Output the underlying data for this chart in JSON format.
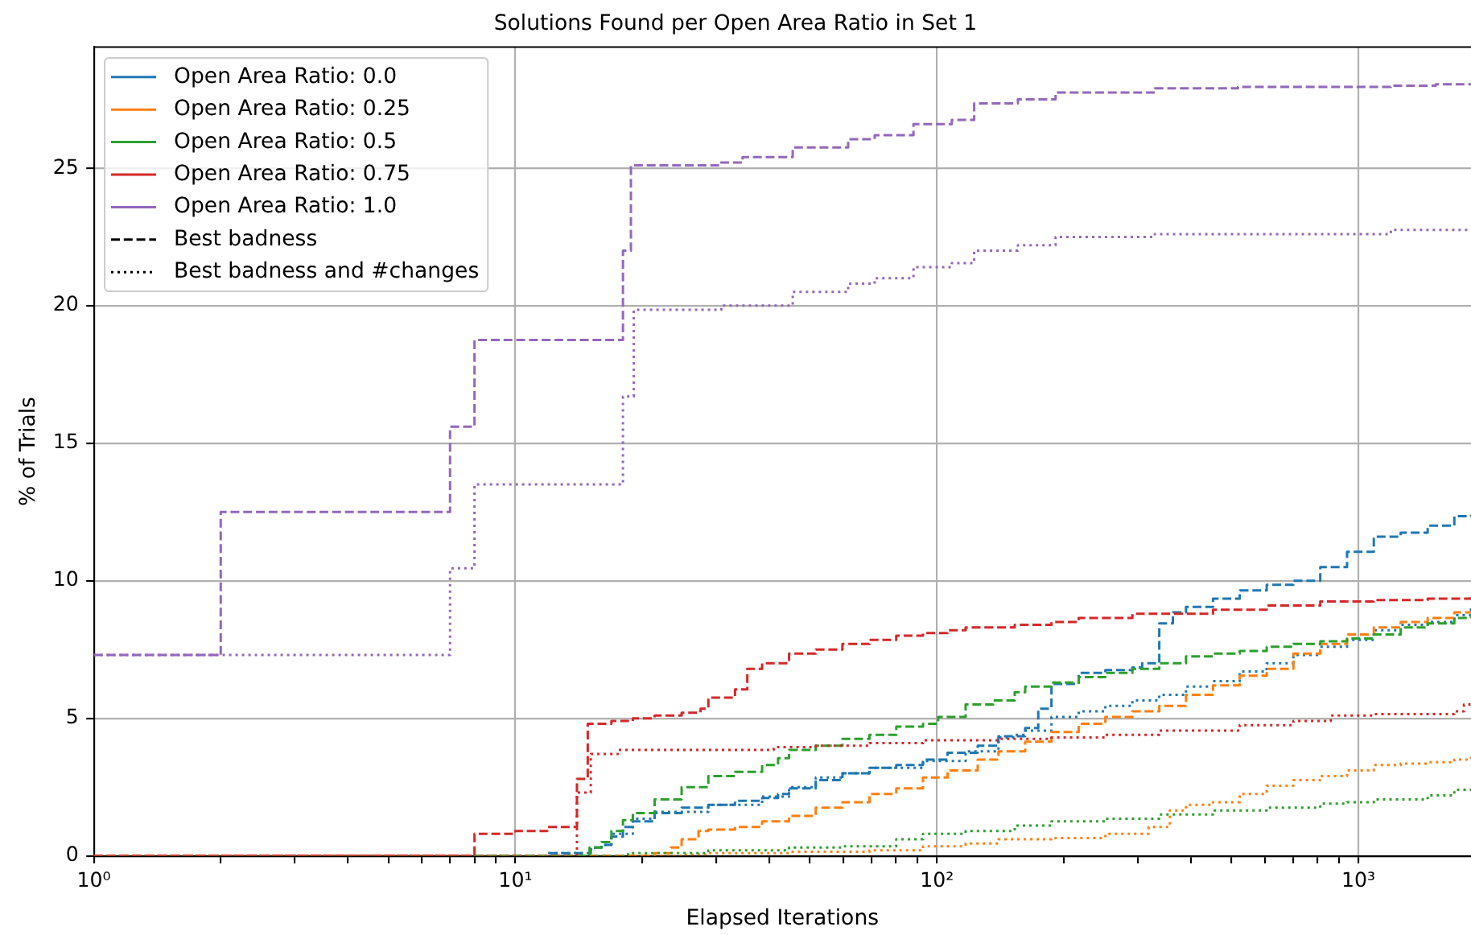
{
  "chart_data": {
    "type": "step",
    "title": "Solutions Found per Open Area Ratio in Set 1",
    "xlabel": "Elapsed Iterations",
    "ylabel": "% of Trials",
    "log": "x",
    "grid": true,
    "legend": "top left",
    "xlim": [
      1,
      1850
    ],
    "xticks": [
      {
        "value": 1,
        "label": "10⁰"
      },
      {
        "value": 2,
        "label": null
      },
      {
        "value": 3,
        "label": null
      },
      {
        "value": 4,
        "label": null
      },
      {
        "value": 5,
        "label": null
      },
      {
        "value": 6,
        "label": null
      },
      {
        "value": 7,
        "label": null
      },
      {
        "value": 8,
        "label": null
      },
      {
        "value": 9,
        "label": null
      },
      {
        "value": 10,
        "label": "10¹"
      },
      {
        "value": 20,
        "label": null
      },
      {
        "value": 30,
        "label": null
      },
      {
        "value": 40,
        "label": null
      },
      {
        "value": 50,
        "label": null
      },
      {
        "value": 60,
        "label": null
      },
      {
        "value": 70,
        "label": null
      },
      {
        "value": 80,
        "label": null
      },
      {
        "value": 90,
        "label": null
      },
      {
        "value": 100,
        "label": "10²"
      },
      {
        "value": 200,
        "label": null
      },
      {
        "value": 300,
        "label": null
      },
      {
        "value": 400,
        "label": null
      },
      {
        "value": 500,
        "label": null
      },
      {
        "value": 600,
        "label": null
      },
      {
        "value": 700,
        "label": null
      },
      {
        "value": 800,
        "label": null
      },
      {
        "value": 900,
        "label": null
      },
      {
        "value": 1000,
        "label": "10³"
      }
    ],
    "ylim": [
      0,
      29.4
    ],
    "yticks": [
      0,
      5,
      10,
      15,
      20,
      25
    ],
    "series": [
      {
        "name": "Open Area Ratio: 0.0",
        "color": "#1f77b4",
        "line_style": "solid"
      },
      {
        "name": "Open Area Ratio: 0.25",
        "color": "#ff7f0e",
        "line_style": "solid"
      },
      {
        "name": "Open Area Ratio: 0.5",
        "color": "#2ca02c",
        "line_style": "solid"
      },
      {
        "name": "Open Area Ratio: 0.75",
        "color": "#d62728",
        "line_style": "solid"
      },
      {
        "name": "Open Area Ratio: 1.0",
        "color": "#9467bd",
        "line_style": "solid"
      },
      {
        "name": "Best badness",
        "color": "#000000",
        "line_style": "dashed"
      },
      {
        "name": "Best badness and #changes",
        "color": "#000000",
        "line_style": "dotted"
      },
      {
        "color": "#1f77b4",
        "line_style": "dashed",
        "x": [
          1,
          11.9,
          15.1,
          16,
          16.9,
          18,
          19,
          21.4,
          24.8,
          28.7,
          33.2,
          38.5,
          42,
          44.6,
          51.6,
          59.7,
          69.2,
          80.1,
          92.7,
          106,
          125,
          140,
          162,
          174,
          187,
          217,
          251,
          291,
          307,
          337,
          363,
          390,
          452,
          523,
          606,
          701,
          812,
          940,
          1088,
          1260,
          1460,
          1689,
          1850
        ],
        "values": [
          0,
          0.1,
          0.3,
          0.4,
          0.7,
          1.05,
          1.25,
          1.55,
          1.75,
          1.85,
          2.0,
          2.1,
          2.25,
          2.45,
          2.75,
          3.0,
          3.2,
          3.3,
          3.5,
          3.75,
          4.0,
          4.35,
          4.65,
          5.35,
          6.25,
          6.65,
          6.75,
          6.85,
          7.0,
          8.45,
          8.85,
          9.05,
          9.35,
          9.65,
          9.85,
          10.0,
          10.5,
          11.05,
          11.6,
          11.75,
          12.0,
          12.35,
          12.4
        ]
      },
      {
        "color": "#1f77b4",
        "line_style": "dotted",
        "x": [
          1,
          11.9,
          15.1,
          16,
          16.9,
          19,
          21.4,
          28.7,
          38.5,
          44.6,
          51.6,
          59.7,
          69.2,
          92.7,
          117,
          140,
          153,
          162,
          187,
          217,
          251,
          291,
          337,
          390,
          452,
          523,
          606,
          701,
          812,
          940,
          1088,
          1260,
          1460,
          1689,
          1850
        ],
        "values": [
          0,
          0.1,
          0.3,
          0.4,
          0.8,
          1.35,
          1.6,
          1.85,
          2.15,
          2.5,
          2.85,
          3.0,
          3.2,
          3.45,
          3.8,
          4.3,
          4.4,
          4.55,
          5.05,
          5.25,
          5.45,
          5.65,
          5.85,
          6.15,
          6.35,
          6.7,
          7.0,
          7.3,
          7.6,
          7.85,
          8.2,
          8.4,
          8.5,
          8.75,
          9.1
        ]
      },
      {
        "color": "#ff7f0e",
        "line_style": "dashed",
        "x": [
          1,
          21.4,
          23.4,
          24.8,
          27.2,
          28.7,
          33.2,
          38.5,
          44.6,
          51.6,
          59.7,
          69.2,
          80.1,
          92.7,
          106,
          125,
          140,
          162,
          187,
          217,
          251,
          291,
          337,
          390,
          452,
          523,
          606,
          701,
          812,
          940,
          1088,
          1260,
          1460,
          1689,
          1850
        ],
        "values": [
          0,
          0.1,
          0.3,
          0.6,
          0.9,
          0.95,
          1.05,
          1.25,
          1.45,
          1.75,
          1.95,
          2.25,
          2.45,
          2.85,
          3.1,
          3.5,
          3.8,
          4.15,
          4.5,
          4.8,
          5.05,
          5.25,
          5.45,
          5.85,
          6.2,
          6.55,
          6.8,
          7.35,
          7.7,
          8.05,
          8.3,
          8.5,
          8.65,
          8.85,
          8.9
        ]
      },
      {
        "color": "#ff7f0e",
        "line_style": "dotted",
        "x": [
          1,
          25,
          28.7,
          44.6,
          69.2,
          92.7,
          117,
          140,
          187,
          251,
          318,
          357,
          390,
          452,
          523,
          606,
          701,
          812,
          940,
          1088,
          1260,
          1460,
          1689,
          1850
        ],
        "values": [
          0,
          0.05,
          0.1,
          0.15,
          0.2,
          0.35,
          0.45,
          0.6,
          0.65,
          0.8,
          1.05,
          1.65,
          1.85,
          1.95,
          2.25,
          2.55,
          2.75,
          2.9,
          3.1,
          3.3,
          3.35,
          3.4,
          3.5,
          3.6
        ]
      },
      {
        "color": "#2ca02c",
        "line_style": "dashed",
        "x": [
          1,
          15,
          16,
          16.9,
          18,
          19,
          21.4,
          24.8,
          28.7,
          33.2,
          38.5,
          42,
          44.6,
          51.6,
          59.7,
          69.2,
          80.1,
          92.7,
          100.7,
          117,
          136,
          153,
          162,
          187,
          217,
          251,
          291,
          337,
          390,
          452,
          523,
          606,
          701,
          812,
          940,
          1088,
          1260,
          1460,
          1689,
          1850
        ],
        "values": [
          0,
          0.3,
          0.5,
          0.9,
          1.3,
          1.55,
          2.05,
          2.5,
          2.9,
          3.05,
          3.3,
          3.55,
          3.85,
          4.0,
          4.25,
          4.4,
          4.7,
          4.8,
          5.05,
          5.5,
          5.65,
          5.95,
          6.15,
          6.3,
          6.5,
          6.65,
          6.8,
          7.0,
          7.25,
          7.35,
          7.45,
          7.6,
          7.7,
          7.8,
          7.9,
          8.05,
          8.3,
          8.45,
          8.65,
          8.8
        ]
      },
      {
        "color": "#2ca02c",
        "line_style": "dotted",
        "x": [
          1,
          18.5,
          28.7,
          44.6,
          59.7,
          80.1,
          92.7,
          117,
          153,
          187,
          251,
          337,
          452,
          606,
          812,
          940,
          1088,
          1460,
          1689,
          1850
        ],
        "values": [
          0,
          0.1,
          0.2,
          0.3,
          0.35,
          0.6,
          0.8,
          0.9,
          1.1,
          1.25,
          1.35,
          1.5,
          1.65,
          1.75,
          1.9,
          1.95,
          2.05,
          2.2,
          2.4,
          2.55
        ]
      },
      {
        "color": "#d62728",
        "line_style": "dashed",
        "x": [
          1,
          8,
          10,
          11.9,
          14,
          14.85,
          16.9,
          19,
          21.4,
          24.8,
          27.5,
          28.7,
          33.2,
          35.5,
          38.5,
          44.6,
          51.6,
          59.7,
          69.2,
          80.1,
          92.7,
          106,
          117,
          153,
          187,
          217,
          291,
          452,
          606,
          812,
          1088,
          1460,
          1850
        ],
        "values": [
          0,
          0.8,
          0.9,
          1.05,
          2.8,
          4.8,
          4.9,
          5.0,
          5.1,
          5.2,
          5.35,
          5.75,
          6.05,
          6.8,
          7.0,
          7.35,
          7.5,
          7.7,
          7.85,
          8.0,
          8.1,
          8.2,
          8.3,
          8.4,
          8.5,
          8.65,
          8.8,
          8.95,
          9.1,
          9.25,
          9.3,
          9.35,
          9.4
        ]
      },
      {
        "color": "#d62728",
        "line_style": "dotted",
        "x": [
          1,
          14,
          15.1,
          17.5,
          41,
          51.6,
          69.2,
          92.7,
          140,
          187,
          251,
          337,
          523,
          701,
          860,
          1088,
          1689,
          1780,
          1850
        ],
        "values": [
          0,
          2.3,
          3.7,
          3.85,
          3.95,
          4.0,
          4.1,
          4.2,
          4.25,
          4.3,
          4.4,
          4.55,
          4.75,
          4.9,
          5.1,
          5.15,
          5.25,
          5.5,
          5.5
        ]
      },
      {
        "color": "#9467bd",
        "line_style": "dashed",
        "x": [
          1,
          2,
          7,
          8,
          18,
          18.8,
          30.8,
          34.6,
          45.5,
          61.6,
          71.2,
          88,
          108.5,
          122.6,
          155.7,
          191.3,
          329,
          518,
          1194,
          1525,
          1850
        ],
        "values": [
          7.3,
          12.5,
          15.6,
          18.75,
          22.0,
          25.1,
          25.2,
          25.4,
          25.75,
          26.05,
          26.2,
          26.6,
          26.75,
          27.35,
          27.5,
          27.75,
          27.9,
          27.95,
          28.0,
          28.05,
          28.05
        ]
      },
      {
        "color": "#9467bd",
        "line_style": "dotted",
        "x": [
          1,
          7,
          8,
          18,
          19.1,
          30.8,
          45.5,
          61.6,
          71.2,
          88,
          108.5,
          122.6,
          155.7,
          191.3,
          329,
          1194,
          1850
        ],
        "values": [
          7.3,
          10.45,
          13.5,
          16.7,
          19.85,
          20.0,
          20.5,
          20.8,
          21.0,
          21.4,
          21.55,
          22.0,
          22.2,
          22.5,
          22.6,
          22.75,
          22.75
        ]
      }
    ]
  }
}
